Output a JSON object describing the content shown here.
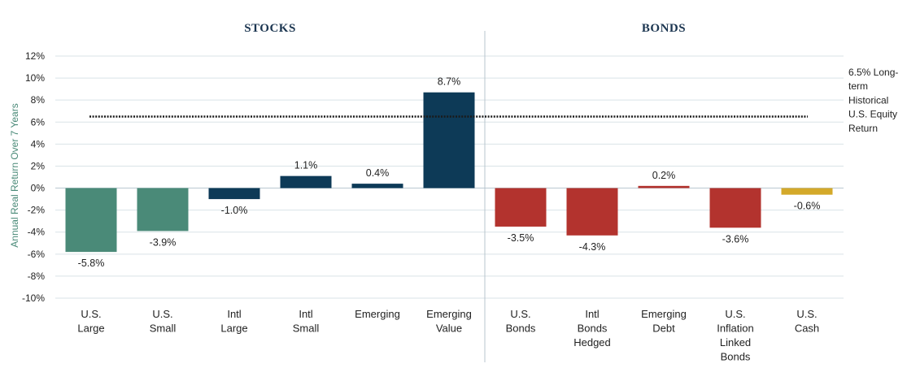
{
  "chart_data": {
    "type": "bar",
    "title": "",
    "xlabel": "",
    "ylabel": "Annual Real Return Over 7 Years",
    "ylim": [
      -10,
      12
    ],
    "yticks": [
      12,
      10,
      8,
      6,
      4,
      2,
      0,
      -2,
      -4,
      -6,
      -8,
      -10
    ],
    "ytick_labels": [
      "12%",
      "10%",
      "8%",
      "6%",
      "4%",
      "2%",
      "0%",
      "-2%",
      "-4%",
      "-6%",
      "-8%",
      "-10%"
    ],
    "grid": true,
    "groups": [
      {
        "name": "STOCKS",
        "categories": [
          0,
          1,
          2,
          3,
          4,
          5
        ]
      },
      {
        "name": "BONDS",
        "categories": [
          6,
          7,
          8,
          9,
          10
        ]
      }
    ],
    "categories": [
      [
        "U.S.",
        "Large"
      ],
      [
        "U.S.",
        "Small"
      ],
      [
        "Intl",
        "Large"
      ],
      [
        "Intl",
        "Small"
      ],
      [
        "Emerging"
      ],
      [
        "Emerging",
        "Value"
      ],
      [
        "U.S.",
        "Bonds"
      ],
      [
        "Intl",
        "Bonds",
        "Hedged"
      ],
      [
        "Emerging",
        "Debt"
      ],
      [
        "U.S.",
        "Inflation",
        "Linked",
        "Bonds"
      ],
      [
        "U.S.",
        "Cash"
      ]
    ],
    "values": [
      -5.8,
      -3.9,
      -1.0,
      1.1,
      0.4,
      8.7,
      -3.5,
      -4.3,
      0.2,
      -3.6,
      -0.6
    ],
    "data_labels": [
      "-5.8%",
      "-3.9%",
      "-1.0%",
      "1.1%",
      "0.4%",
      "8.7%",
      "-3.5%",
      "-4.3%",
      "0.2%",
      "-3.6%",
      "-0.6%"
    ],
    "colors": [
      "#4a8a78",
      "#4a8a78",
      "#0d3a57",
      "#0d3a57",
      "#0d3a57",
      "#0d3a57",
      "#b3332e",
      "#b3332e",
      "#b3332e",
      "#b3332e",
      "#d4a92a"
    ],
    "reference_line": {
      "value": 6.5,
      "label": [
        "6.5% Long-",
        "term",
        "Historical",
        "U.S. Equity",
        "Return"
      ]
    }
  }
}
